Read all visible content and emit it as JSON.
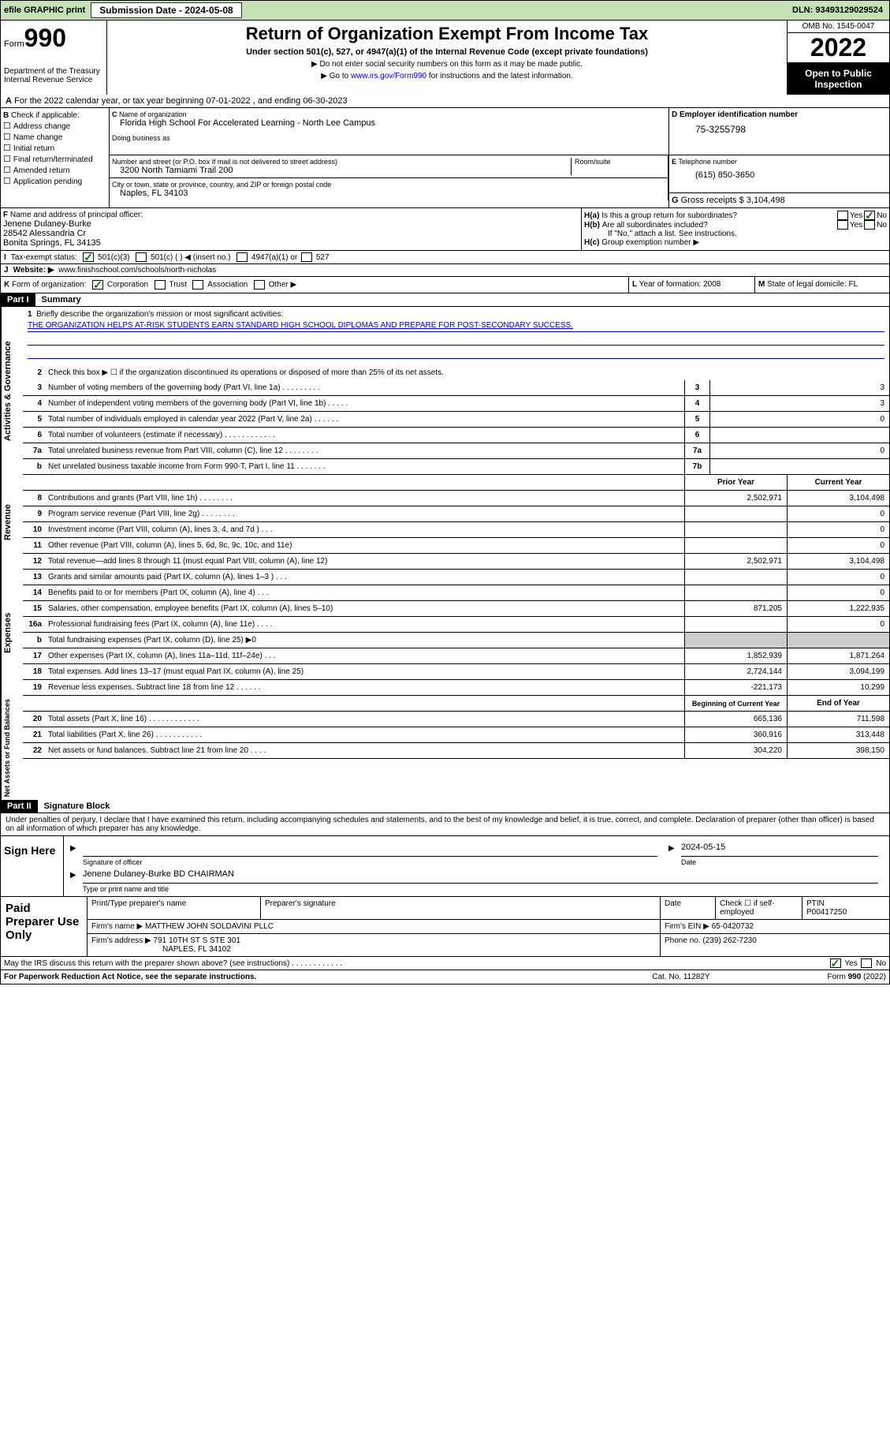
{
  "topbar": {
    "efile": "efile GRAPHIC print",
    "sub_label": "Submission Date - ",
    "sub_date": "2024-05-08",
    "dln_label": "DLN: ",
    "dln": "93493129029524"
  },
  "header": {
    "form_prefix": "Form",
    "form_no": "990",
    "dept": "Department of the Treasury\nInternal Revenue Service",
    "title": "Return of Organization Exempt From Income Tax",
    "sub": "Under section 501(c), 527, or 4947(a)(1) of the Internal Revenue Code (except private foundations)",
    "note1": "▶ Do not enter social security numbers on this form as it may be made public.",
    "note2_pre": "▶ Go to ",
    "note2_link": "www.irs.gov/Form990",
    "note2_post": " for instructions and the latest information.",
    "omb": "OMB No. 1545-0047",
    "year": "2022",
    "otp": "Open to Public Inspection"
  },
  "A": {
    "text": "For the 2022 calendar year, or tax year beginning 07-01-2022   , and ending 06-30-2023"
  },
  "B": {
    "label": "Check if applicable:",
    "opts": [
      "Address change",
      "Name change",
      "Initial return",
      "Final return/terminated",
      "Amended return",
      "Application pending"
    ]
  },
  "C": {
    "name_lbl": "Name of organization",
    "name": "Florida High School For Accelerated Learning - North Lee Campus",
    "dba_lbl": "Doing business as",
    "addr_lbl": "Number and street (or P.O. box if mail is not delivered to street address)",
    "room_lbl": "Room/suite",
    "addr": "3200 North Tamiami Trail 200",
    "city_lbl": "City or town, state or province, country, and ZIP or foreign postal code",
    "city": "Naples, FL  34103"
  },
  "D": {
    "lbl": "Employer identification number",
    "val": "75-3255798"
  },
  "E": {
    "lbl": "Telephone number",
    "val": "(615) 850-3650"
  },
  "G": {
    "lbl": "Gross receipts $",
    "val": "3,104,498"
  },
  "F": {
    "lbl": "Name and address of principal officer:",
    "name": "Jenene Dulaney-Burke",
    "addr1": "28542 Alessandria Cr",
    "addr2": "Bonita Springs, FL  34135"
  },
  "H": {
    "a": "Is this a group return for subordinates?",
    "a_ans": "No",
    "b": "Are all subordinates included?",
    "b_note": "If \"No,\" attach a list. See instructions.",
    "c": "Group exemption number ▶"
  },
  "I": {
    "lbl": "Tax-exempt status:",
    "o1": "501(c)(3)",
    "o2": "501(c) (  ) ◀ (insert no.)",
    "o3": "4947(a)(1) or",
    "o4": "527"
  },
  "J": {
    "lbl": "Website: ▶",
    "val": "www.finishschool.com/schools/north-nicholas"
  },
  "K": {
    "lbl": "Form of organization:",
    "o1": "Corporation",
    "o2": "Trust",
    "o3": "Association",
    "o4": "Other ▶"
  },
  "L": {
    "lbl": "Year of formation:",
    "val": "2008"
  },
  "M": {
    "lbl": "State of legal domicile:",
    "val": "FL"
  },
  "part1": {
    "hdr": "Part I",
    "title": "Summary",
    "q1": "Briefly describe the organization's mission or most significant activities:",
    "mission": "THE ORGANIZATION HELPS AT-RISK STUDENTS EARN STANDARD HIGH SCHOOL DIPLOMAS AND PREPARE FOR POST-SECONDARY SUCCESS.",
    "q2": "Check this box ▶ ☐  if the organization discontinued its operations or disposed of more than 25% of its net assets.",
    "rows_single": [
      {
        "n": "3",
        "t": "Number of voting members of the governing body (Part VI, line 1a)  .    .    .    .    .    .    .    .    .",
        "cn": "3",
        "cv": "3"
      },
      {
        "n": "4",
        "t": "Number of independent voting members of the governing body (Part VI, line 1b)  .    .    .    .    .",
        "cn": "4",
        "cv": "3"
      },
      {
        "n": "5",
        "t": "Total number of individuals employed in calendar year 2022 (Part V, line 2a)  .    .    .    .    .    .",
        "cn": "5",
        "cv": "0"
      },
      {
        "n": "6",
        "t": "Total number of volunteers (estimate if necessary)  .    .    .    .    .    .    .    .    .    .    .    .",
        "cn": "6",
        "cv": ""
      },
      {
        "n": "7a",
        "t": "Total unrelated business revenue from Part VIII, column (C), line 12  .    .    .    .    .    .    .    .",
        "cn": "7a",
        "cv": "0"
      },
      {
        "n": "b",
        "t": "Net unrelated business taxable income from Form 990-T, Part I, line 11  .    .    .    .    .    .    .",
        "cn": "7b",
        "cv": ""
      }
    ],
    "col_hdr": {
      "c1": "Prior Year",
      "c2": "Current Year"
    },
    "revenue": [
      {
        "n": "8",
        "t": "Contributions and grants (Part VIII, line 1h)   .    .    .    .    .    .    .    .",
        "c1": "2,502,971",
        "c2": "3,104,498"
      },
      {
        "n": "9",
        "t": "Program service revenue (Part VIII, line 2g)   .    .    .    .    .    .    .    .",
        "c1": "",
        "c2": "0"
      },
      {
        "n": "10",
        "t": "Investment income (Part VIII, column (A), lines 3, 4, and 7d )   .    .    .",
        "c1": "",
        "c2": "0"
      },
      {
        "n": "11",
        "t": "Other revenue (Part VIII, column (A), lines 5, 6d, 8c, 9c, 10c, and 11e)",
        "c1": "",
        "c2": "0"
      },
      {
        "n": "12",
        "t": "Total revenue—add lines 8 through 11 (must equal Part VIII, column (A), line 12)",
        "c1": "2,502,971",
        "c2": "3,104,498"
      }
    ],
    "expenses": [
      {
        "n": "13",
        "t": "Grants and similar amounts paid (Part IX, column (A), lines 1–3 )   .    .    .",
        "c1": "",
        "c2": "0"
      },
      {
        "n": "14",
        "t": "Benefits paid to or for members (Part IX, column (A), line 4)   .    .    .",
        "c1": "",
        "c2": "0"
      },
      {
        "n": "15",
        "t": "Salaries, other compensation, employee benefits (Part IX, column (A), lines 5–10)",
        "c1": "871,205",
        "c2": "1,222,935"
      },
      {
        "n": "16a",
        "t": "Professional fundraising fees (Part IX, column (A), line 11e)   .    .    .    .",
        "c1": "",
        "c2": "0"
      },
      {
        "n": "b",
        "t": "Total fundraising expenses (Part IX, column (D), line 25) ▶0",
        "c1": "grey",
        "c2": "grey"
      },
      {
        "n": "17",
        "t": "Other expenses (Part IX, column (A), lines 11a–11d, 11f–24e)   .    .    .",
        "c1": "1,852,939",
        "c2": "1,871,264"
      },
      {
        "n": "18",
        "t": "Total expenses. Add lines 13–17 (must equal Part IX, column (A), line 25)",
        "c1": "2,724,144",
        "c2": "3,094,199"
      },
      {
        "n": "19",
        "t": "Revenue less expenses. Subtract line 18 from line 12   .    .    .    .    .    .",
        "c1": "-221,173",
        "c2": "10,299"
      }
    ],
    "net_hdr": {
      "c1": "Beginning of Current Year",
      "c2": "End of Year"
    },
    "netassets": [
      {
        "n": "20",
        "t": "Total assets (Part X, line 16)   .    .    .    .    .    .    .    .    .    .    .    .",
        "c1": "665,136",
        "c2": "711,598"
      },
      {
        "n": "21",
        "t": "Total liabilities (Part X, line 26)   .    .    .    .    .    .    .    .    .    .    .",
        "c1": "360,916",
        "c2": "313,448"
      },
      {
        "n": "22",
        "t": "Net assets or fund balances. Subtract line 21 from line 20   .    .    .    .",
        "c1": "304,220",
        "c2": "398,150"
      }
    ],
    "side": {
      "gov": "Activities & Governance",
      "rev": "Revenue",
      "exp": "Expenses",
      "net": "Net Assets or Fund Balances"
    }
  },
  "part2": {
    "hdr": "Part II",
    "title": "Signature Block",
    "penalty": "Under penalties of perjury, I declare that I have examined this return, including accompanying schedules and statements, and to the best of my knowledge and belief, it is true, correct, and complete. Declaration of preparer (other than officer) is based on all information of which preparer has any knowledge.",
    "sign_here": "Sign Here",
    "sig_officer": "Signature of officer",
    "date": "Date",
    "sig_date": "2024-05-15",
    "sig_name": "Jenene Dulaney-Burke  BD CHAIRMAN",
    "sig_type": "Type or print name and title",
    "paid": "Paid Preparer Use Only",
    "p_name_lbl": "Print/Type preparer's name",
    "p_sig_lbl": "Preparer's signature",
    "p_date_lbl": "Date",
    "p_check": "Check ☐ if self-employed",
    "ptin_lbl": "PTIN",
    "ptin": "P00417250",
    "firm_name_lbl": "Firm's name    ▶",
    "firm_name": "MATTHEW JOHN SOLDAVINI PLLC",
    "firm_ein_lbl": "Firm's EIN ▶",
    "firm_ein": "65-0420732",
    "firm_addr_lbl": "Firm's address ▶",
    "firm_addr": "791 10TH ST S STE 301",
    "firm_city": "NAPLES, FL 34102",
    "phone_lbl": "Phone no.",
    "phone": "(239) 262-7230",
    "may_irs": "May the IRS discuss this return with the preparer shown above? (see instructions)   .    .    .    .    .    .    .    .    .    .    .    .",
    "may_ans": "Yes"
  },
  "footer": {
    "f1": "For Paperwork Reduction Act Notice, see the separate instructions.",
    "f2": "Cat. No. 11282Y",
    "f3": "Form 990 (2022)"
  },
  "colors": {
    "topbar_bg": "#c5e0b4",
    "link": "#0000cc",
    "check_green": "#0a6e0a",
    "grey": "#cccccc"
  }
}
